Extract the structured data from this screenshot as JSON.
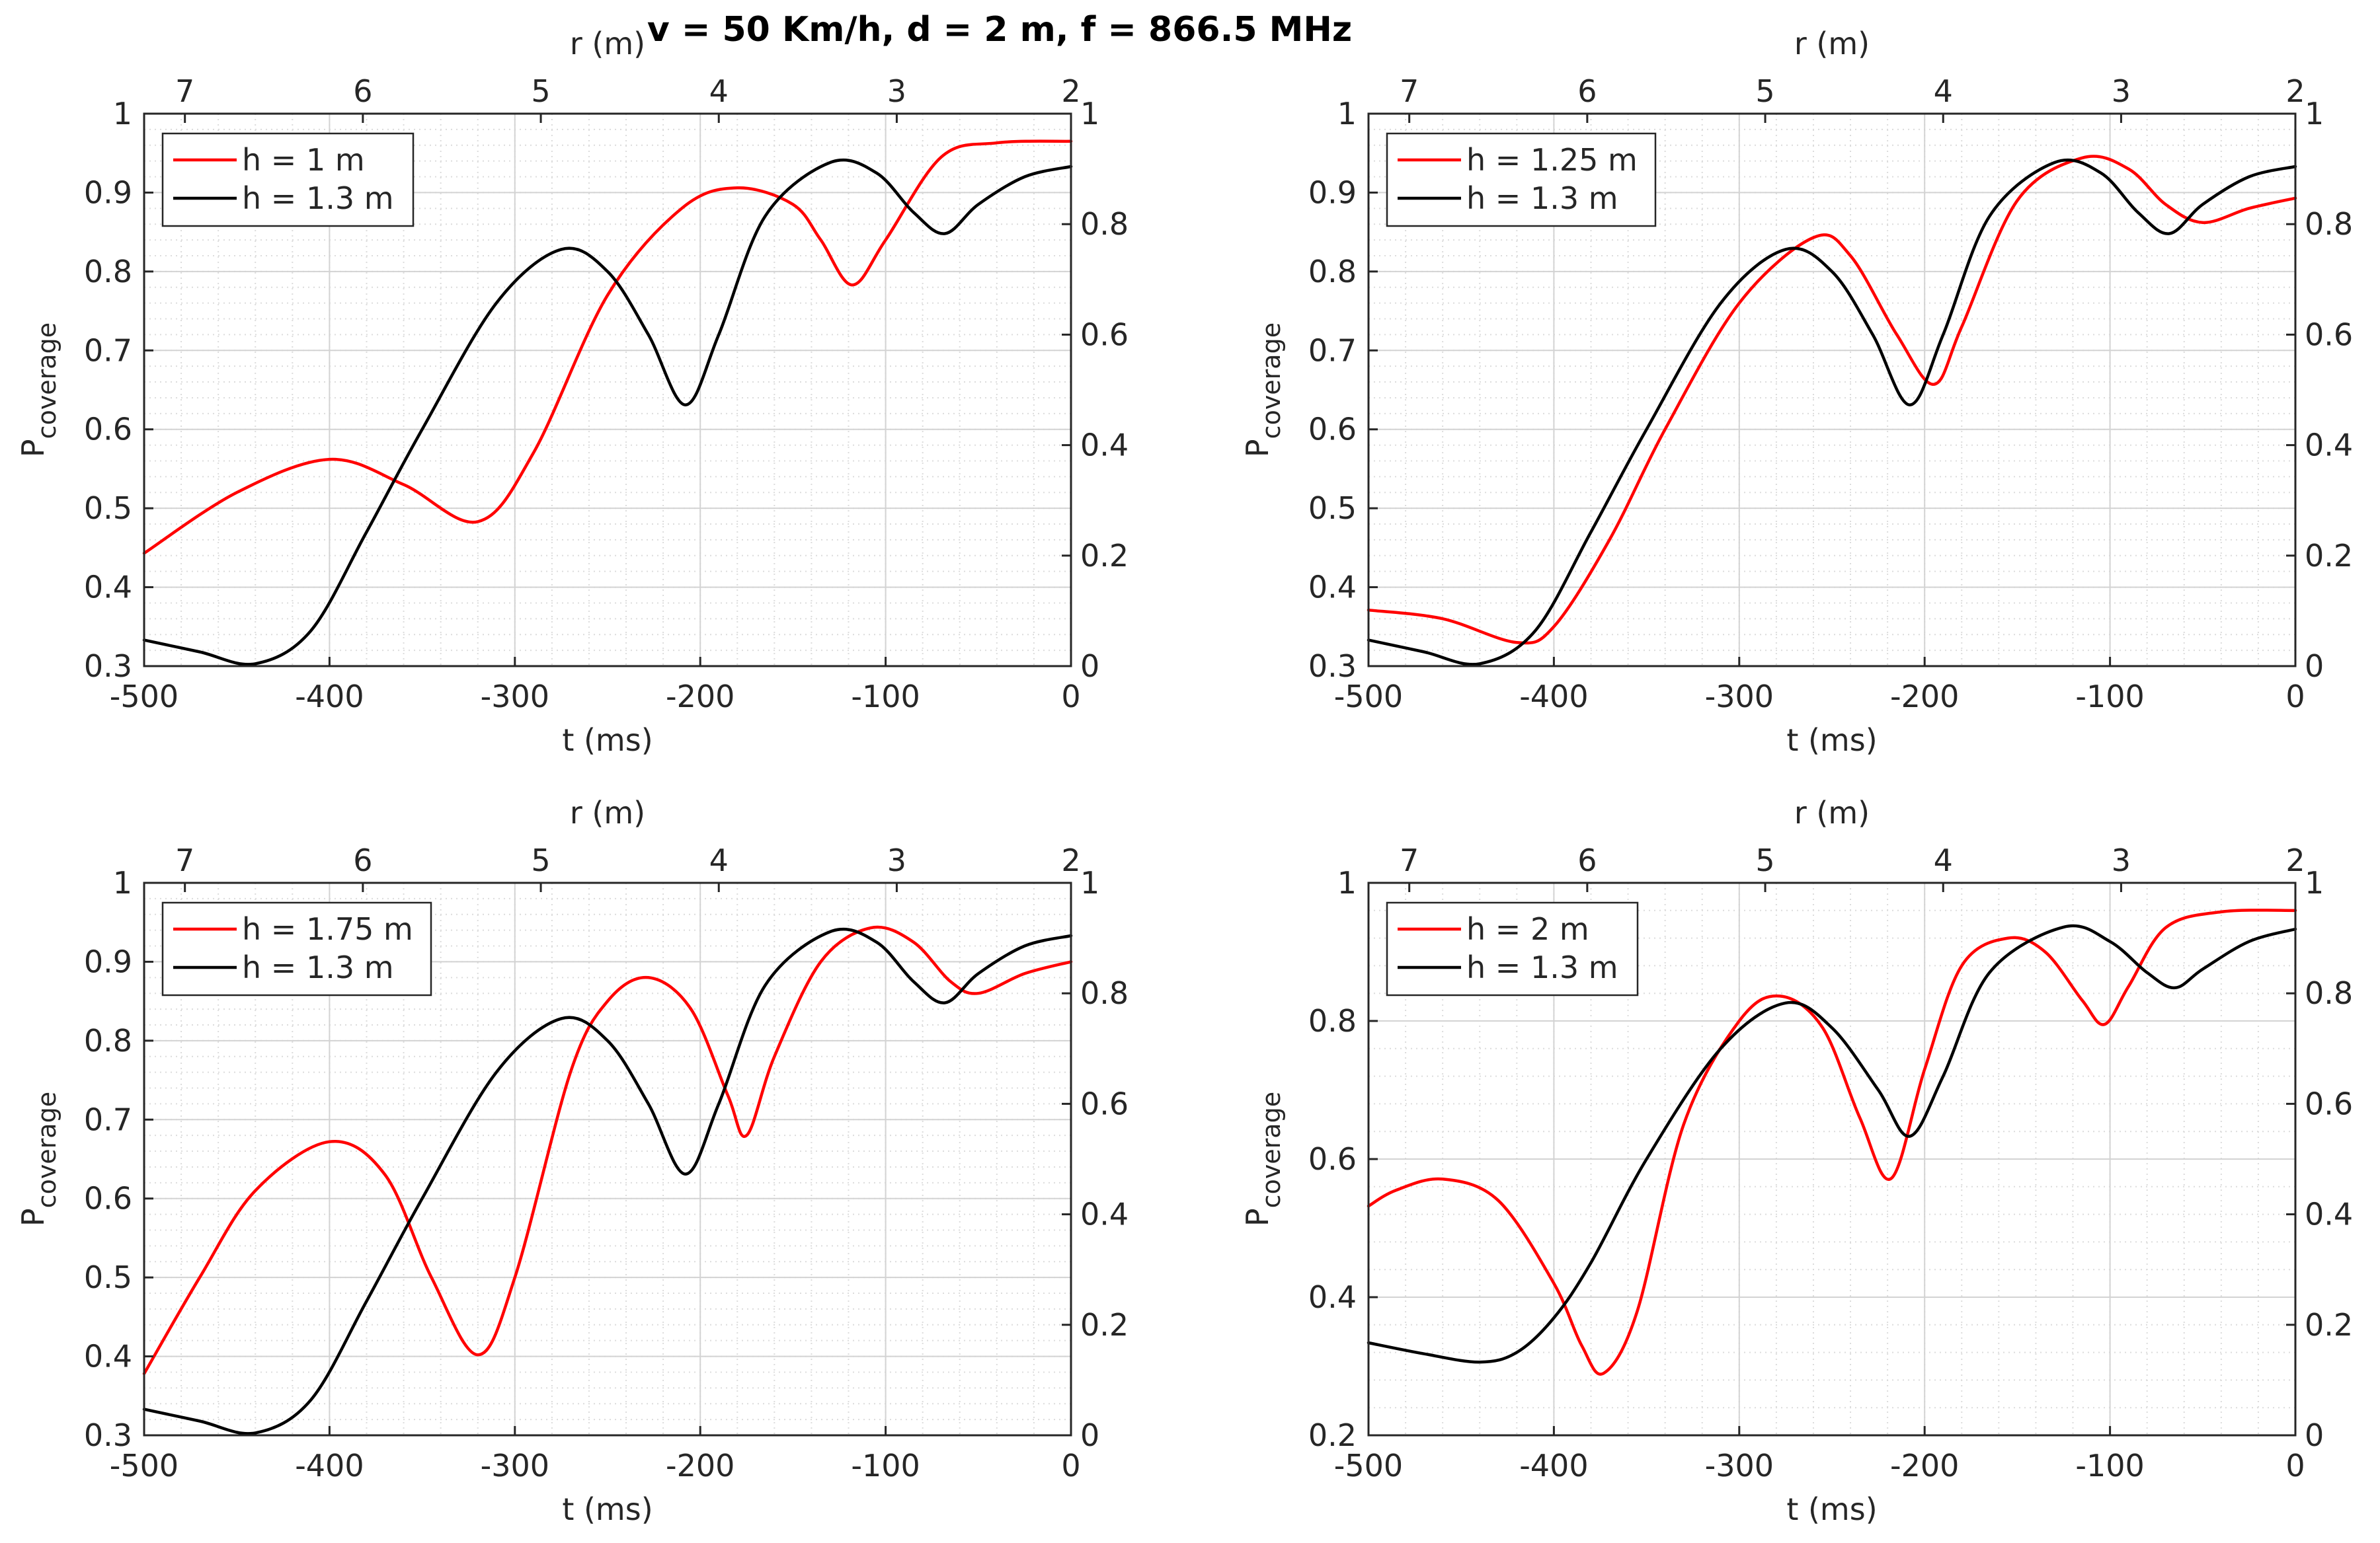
{
  "figure": {
    "title": "v = 50 Km/h, d = 2 m, f = 866.5 MHz"
  },
  "chart_data": [
    {
      "type": "line",
      "title": "",
      "xlabel": "t (ms)",
      "ylabel_main": "P",
      "ylabel_sub": "coverage",
      "top_xlabel": "r (m)",
      "xlim": [
        -500,
        0
      ],
      "xticks": [
        -500,
        -400,
        -300,
        -200,
        -100,
        0
      ],
      "ylim": [
        0.3,
        1
      ],
      "yticks": [
        0.3,
        0.4,
        0.5,
        0.6,
        0.7,
        0.8,
        0.9,
        1
      ],
      "ytick_labels": [
        "0.3",
        "0.4",
        "0.5",
        "0.6",
        "0.7",
        "0.8",
        "0.9",
        "1"
      ],
      "right_ylim": [
        0,
        1
      ],
      "right_yticks": [
        0,
        0.2,
        0.4,
        0.6,
        0.8,
        1
      ],
      "right_ytick_labels": [
        "0",
        "0.2",
        "0.4",
        "0.6",
        "0.8",
        "1"
      ],
      "top_xticks": [
        {
          "t": -478,
          "label": "7"
        },
        {
          "t": -382,
          "label": "6"
        },
        {
          "t": -286,
          "label": "5"
        },
        {
          "t": -190,
          "label": "4"
        },
        {
          "t": -94,
          "label": "3"
        },
        {
          "t": 0,
          "label": "2"
        }
      ],
      "legend_location": "top-left",
      "grid": true,
      "series": [
        {
          "name": "h = 1 m",
          "color": "#ff0000",
          "t": [
            -500,
            -450,
            -400,
            -360,
            -320,
            -290,
            -250,
            -210,
            -180,
            -150,
            -135,
            -118,
            -100,
            -70,
            -40,
            0
          ],
          "y": [
            0.443,
            0.52,
            0.562,
            0.53,
            0.483,
            0.57,
            0.77,
            0.88,
            0.906,
            0.885,
            0.84,
            0.783,
            0.84,
            0.945,
            0.963,
            0.965
          ]
        },
        {
          "name": "h = 1.3 m",
          "color": "#000000",
          "t": [
            -500,
            -470,
            -440,
            -410,
            -380,
            -350,
            -310,
            -275,
            -250,
            -228,
            -208,
            -190,
            -165,
            -130,
            -105,
            -85,
            -68,
            -50,
            -25,
            0
          ],
          "y": [
            0.333,
            0.318,
            0.303,
            0.345,
            0.47,
            0.6,
            0.76,
            0.828,
            0.8,
            0.72,
            0.631,
            0.72,
            0.87,
            0.938,
            0.925,
            0.875,
            0.848,
            0.885,
            0.92,
            0.933
          ]
        }
      ]
    },
    {
      "type": "line",
      "title": "",
      "xlabel": "t (ms)",
      "ylabel_main": "P",
      "ylabel_sub": "coverage",
      "top_xlabel": "r (m)",
      "xlim": [
        -500,
        0
      ],
      "xticks": [
        -500,
        -400,
        -300,
        -200,
        -100,
        0
      ],
      "ylim": [
        0.3,
        1
      ],
      "yticks": [
        0.3,
        0.4,
        0.5,
        0.6,
        0.7,
        0.8,
        0.9,
        1
      ],
      "ytick_labels": [
        "0.3",
        "0.4",
        "0.5",
        "0.6",
        "0.7",
        "0.8",
        "0.9",
        "1"
      ],
      "right_ylim": [
        0,
        1
      ],
      "right_yticks": [
        0,
        0.2,
        0.4,
        0.6,
        0.8,
        1
      ],
      "right_ytick_labels": [
        "0",
        "0.2",
        "0.4",
        "0.6",
        "0.8",
        "1"
      ],
      "top_xticks": [
        {
          "t": -478,
          "label": "7"
        },
        {
          "t": -382,
          "label": "6"
        },
        {
          "t": -286,
          "label": "5"
        },
        {
          "t": -190,
          "label": "4"
        },
        {
          "t": -94,
          "label": "3"
        },
        {
          "t": 0,
          "label": "2"
        }
      ],
      "legend_location": "top-left",
      "grid": true,
      "series": [
        {
          "name": "h = 1.25 m",
          "color": "#ff0000",
          "t": [
            -500,
            -460,
            -420,
            -400,
            -370,
            -340,
            -300,
            -260,
            -240,
            -215,
            -195,
            -180,
            -150,
            -115,
            -90,
            -70,
            -50,
            -25,
            0
          ],
          "y": [
            0.371,
            0.36,
            0.33,
            0.35,
            0.46,
            0.6,
            0.76,
            0.843,
            0.82,
            0.72,
            0.657,
            0.73,
            0.89,
            0.944,
            0.93,
            0.885,
            0.862,
            0.88,
            0.893
          ]
        },
        {
          "name": "h = 1.3 m",
          "color": "#000000",
          "t": [
            -500,
            -470,
            -440,
            -410,
            -380,
            -350,
            -310,
            -275,
            -250,
            -228,
            -208,
            -190,
            -165,
            -130,
            -105,
            -85,
            -68,
            -50,
            -25,
            0
          ],
          "y": [
            0.333,
            0.318,
            0.303,
            0.345,
            0.47,
            0.6,
            0.76,
            0.828,
            0.8,
            0.72,
            0.631,
            0.72,
            0.87,
            0.938,
            0.925,
            0.875,
            0.848,
            0.885,
            0.92,
            0.933
          ]
        }
      ]
    },
    {
      "type": "line",
      "title": "",
      "xlabel": "t (ms)",
      "ylabel_main": "P",
      "ylabel_sub": "coverage",
      "top_xlabel": "r (m)",
      "xlim": [
        -500,
        0
      ],
      "xticks": [
        -500,
        -400,
        -300,
        -200,
        -100,
        0
      ],
      "ylim": [
        0.3,
        1
      ],
      "yticks": [
        0.3,
        0.4,
        0.5,
        0.6,
        0.7,
        0.8,
        0.9,
        1
      ],
      "ytick_labels": [
        "0.3",
        "0.4",
        "0.5",
        "0.6",
        "0.7",
        "0.8",
        "0.9",
        "1"
      ],
      "right_ylim": [
        0,
        1
      ],
      "right_yticks": [
        0,
        0.2,
        0.4,
        0.6,
        0.8,
        1
      ],
      "right_ytick_labels": [
        "0",
        "0.2",
        "0.4",
        "0.6",
        "0.8",
        "1"
      ],
      "top_xticks": [
        {
          "t": -478,
          "label": "7"
        },
        {
          "t": -382,
          "label": "6"
        },
        {
          "t": -286,
          "label": "5"
        },
        {
          "t": -190,
          "label": "4"
        },
        {
          "t": -94,
          "label": "3"
        },
        {
          "t": 0,
          "label": "2"
        }
      ],
      "legend_location": "top-left",
      "grid": true,
      "series": [
        {
          "name": "h = 1.75 m",
          "color": "#ff0000",
          "t": [
            -500,
            -470,
            -440,
            -400,
            -370,
            -345,
            -320,
            -300,
            -270,
            -250,
            -228,
            -205,
            -185,
            -175,
            -160,
            -135,
            -108,
            -85,
            -65,
            -50,
            -25,
            0
          ],
          "y": [
            0.378,
            0.5,
            0.61,
            0.672,
            0.63,
            0.5,
            0.402,
            0.5,
            0.76,
            0.85,
            0.88,
            0.84,
            0.73,
            0.68,
            0.78,
            0.9,
            0.943,
            0.925,
            0.875,
            0.86,
            0.885,
            0.9
          ]
        },
        {
          "name": "h = 1.3 m",
          "color": "#000000",
          "t": [
            -500,
            -470,
            -440,
            -410,
            -380,
            -350,
            -310,
            -275,
            -250,
            -228,
            -208,
            -190,
            -165,
            -130,
            -105,
            -85,
            -68,
            -50,
            -25,
            0
          ],
          "y": [
            0.333,
            0.318,
            0.303,
            0.345,
            0.47,
            0.6,
            0.76,
            0.828,
            0.8,
            0.72,
            0.631,
            0.72,
            0.87,
            0.938,
            0.925,
            0.875,
            0.848,
            0.885,
            0.92,
            0.933
          ]
        }
      ]
    },
    {
      "type": "line",
      "title": "",
      "xlabel": "t (ms)",
      "ylabel_main": "P",
      "ylabel_sub": "coverage",
      "top_xlabel": "r (m)",
      "xlim": [
        -500,
        0
      ],
      "xticks": [
        -500,
        -400,
        -300,
        -200,
        -100,
        0
      ],
      "ylim": [
        0.2,
        1
      ],
      "yticks": [
        0.2,
        0.4,
        0.6,
        0.8,
        1
      ],
      "ytick_labels": [
        "0.2",
        "0.4",
        "0.6",
        "0.8",
        "1"
      ],
      "right_ylim": [
        0,
        1
      ],
      "right_yticks": [
        0,
        0.2,
        0.4,
        0.6,
        0.8,
        1
      ],
      "right_ytick_labels": [
        "0",
        "0.2",
        "0.4",
        "0.6",
        "0.8",
        "1"
      ],
      "top_xticks": [
        {
          "t": -478,
          "label": "7"
        },
        {
          "t": -382,
          "label": "6"
        },
        {
          "t": -286,
          "label": "5"
        },
        {
          "t": -190,
          "label": "4"
        },
        {
          "t": -94,
          "label": "3"
        },
        {
          "t": 0,
          "label": "2"
        }
      ],
      "legend_location": "top-left",
      "grid": true,
      "series": [
        {
          "name": "h = 2 m",
          "color": "#ff0000",
          "t": [
            -500,
            -485,
            -460,
            -430,
            -400,
            -385,
            -373,
            -355,
            -330,
            -300,
            -278,
            -255,
            -235,
            -218,
            -200,
            -180,
            -155,
            -135,
            -115,
            -103,
            -90,
            -70,
            -40,
            0
          ],
          "y": [
            0.532,
            0.555,
            0.571,
            0.54,
            0.42,
            0.33,
            0.29,
            0.38,
            0.65,
            0.8,
            0.836,
            0.79,
            0.66,
            0.572,
            0.73,
            0.88,
            0.92,
            0.9,
            0.83,
            0.795,
            0.85,
            0.935,
            0.958,
            0.96
          ]
        },
        {
          "name": "h = 1.3 m",
          "color": "#000000",
          "t": [
            -500,
            -470,
            -440,
            -420,
            -400,
            -380,
            -350,
            -310,
            -275,
            -250,
            -225,
            -208,
            -190,
            -165,
            -125,
            -100,
            -80,
            -65,
            -50,
            -25,
            0
          ],
          "y": [
            0.334,
            0.318,
            0.306,
            0.32,
            0.37,
            0.45,
            0.6,
            0.76,
            0.826,
            0.79,
            0.7,
            0.633,
            0.72,
            0.87,
            0.936,
            0.915,
            0.87,
            0.848,
            0.875,
            0.915,
            0.933
          ]
        }
      ]
    }
  ]
}
